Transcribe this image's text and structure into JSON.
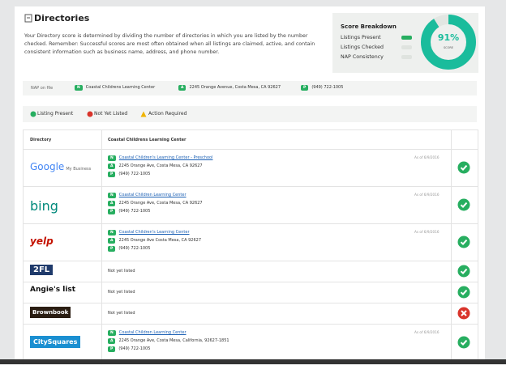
{
  "header": {
    "title": "Directories",
    "description": "Your Directory score is determined by dividing the number of directories in which you are listed by the number checked. Remember: Successful scores are most often obtained when all listings are claimed, active, and contain consistent information such as business name, address, and phone number."
  },
  "score_breakdown": {
    "title": "Score Breakdown",
    "items": [
      "Listings Present",
      "Listings Checked",
      "NAP Consistency"
    ],
    "score": {
      "value": 91,
      "label": "91%"
    },
    "score_caption": "SCORE"
  },
  "nap": {
    "label": "NAP on file",
    "name": {
      "badge": "N",
      "text": "Coastal Childrens Learning Center"
    },
    "address": {
      "badge": "A",
      "text": "2245 Orange Avenue, Costa Mesa, CA 92627"
    },
    "phone": {
      "badge": "P",
      "text": "(949) 722-1005"
    }
  },
  "legend": [
    "Listing Present",
    "Not Yet Listed",
    "Action Required"
  ],
  "table": {
    "columns": [
      "Directory",
      "Coastal Childrens Learning Center"
    ],
    "rows": [
      {
        "directory": "Google",
        "directory_sub": "My Business",
        "status": "present",
        "name": "Coastal Children's Learning Center - Preschool",
        "address": "2245 Orange Ave, Costa Mesa, CA 92627",
        "phone": "(949) 722-1005",
        "as_of": "As of 6/9/2016"
      },
      {
        "directory": "bing",
        "status": "present",
        "name": "Coastal Children Learning Center",
        "address": "2245 Orange Ave, Costa Mesa, CA 92627",
        "phone": "(949) 722-1005",
        "as_of": "As of 6/9/2016"
      },
      {
        "directory": "yelp",
        "status": "present",
        "name": "Coastal Children's Learning Center",
        "address": "2245 Orange Ave Costa Mesa, CA 92627",
        "phone": "(949) 722-1005",
        "as_of": "As of 6/9/2016"
      },
      {
        "directory": "2FL",
        "status": "present",
        "listing": "Not yet listed"
      },
      {
        "directory": "Angie's list",
        "status": "present",
        "listing": "Not yet listed"
      },
      {
        "directory": "Brownbook",
        "status": "missing",
        "listing": "Not yet listed"
      },
      {
        "directory": "CitySquares",
        "status": "present",
        "name": "Coastal Children Learning Center",
        "address": "2245 Orange Ave, Costa Mesa, California, 92627-1851",
        "phone": "(949) 722-1005",
        "as_of": "As of 6/9/2016"
      }
    ]
  }
}
